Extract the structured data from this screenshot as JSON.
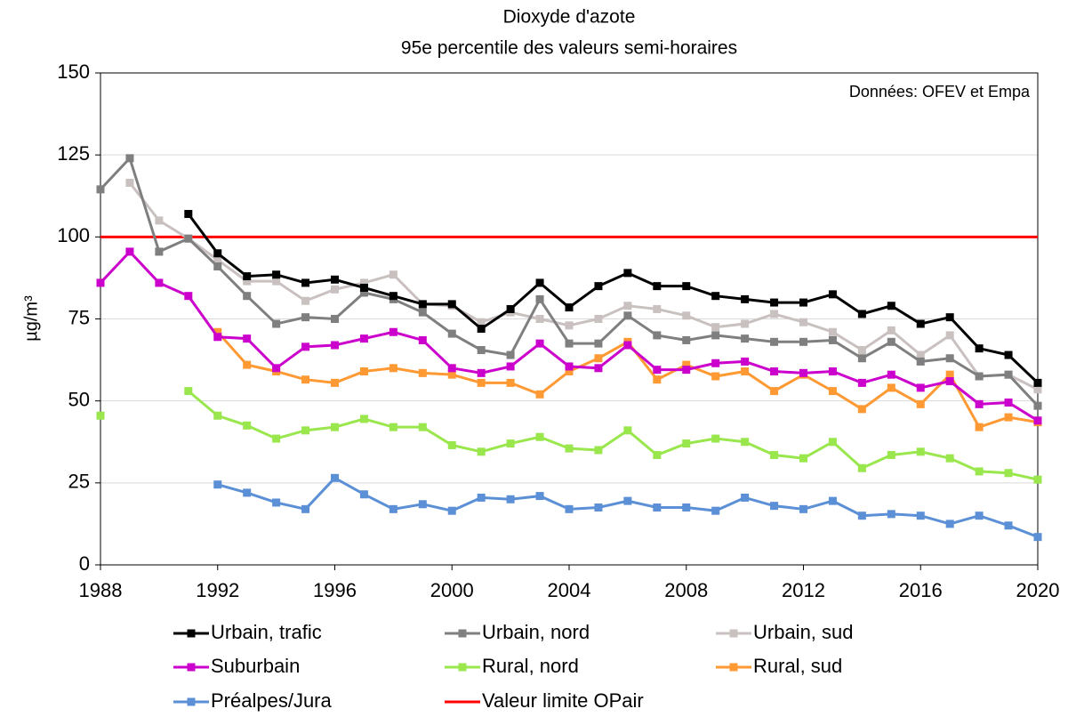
{
  "chart_data": {
    "type": "line",
    "title": "Dioxyde d'azote",
    "subtitle": "95e percentile des valeurs semi-horaires",
    "annotation": "Données: OFEV et Empa",
    "y_label": "µg/m³",
    "x": [
      1988,
      1989,
      1990,
      1991,
      1992,
      1993,
      1994,
      1995,
      1996,
      1997,
      1998,
      1999,
      2000,
      2001,
      2002,
      2003,
      2004,
      2005,
      2006,
      2007,
      2008,
      2009,
      2010,
      2011,
      2012,
      2013,
      2014,
      2015,
      2016,
      2017,
      2018,
      2019,
      2020
    ],
    "xlim": [
      1988,
      2020
    ],
    "xticks": [
      1988,
      1992,
      1996,
      2000,
      2004,
      2008,
      2012,
      2016,
      2020
    ],
    "ylim": [
      0,
      150
    ],
    "yticks": [
      0,
      25,
      50,
      75,
      100,
      125,
      150
    ],
    "grid": true,
    "series": [
      {
        "name": "Urbain, trafic",
        "color": "#000000",
        "markers": true,
        "values": [
          null,
          null,
          null,
          107,
          95,
          88,
          88.5,
          86,
          87,
          84.5,
          82,
          79.5,
          79.5,
          72,
          78,
          86,
          78.5,
          85,
          89,
          85,
          85,
          82,
          81,
          80,
          80,
          82.5,
          76.5,
          79,
          73.5,
          75.5,
          66,
          64,
          55.5
        ]
      },
      {
        "name": "Urbain, nord",
        "color": "#7f7f7f",
        "markers": true,
        "values": [
          114.5,
          124,
          95.5,
          99.5,
          91,
          82,
          73.5,
          75.5,
          75,
          83,
          81,
          77,
          70.5,
          65.5,
          64,
          81,
          67.5,
          67.5,
          76,
          70,
          68.5,
          70,
          69,
          68,
          68,
          68.5,
          63,
          68,
          62,
          63,
          57.5,
          58,
          48.5
        ]
      },
      {
        "name": "Urbain, sud",
        "color": "#c9c0c0",
        "markers": true,
        "values": [
          null,
          116.5,
          105,
          99.5,
          93,
          86.5,
          86.5,
          80.5,
          84,
          86,
          88.5,
          79.5,
          79,
          74,
          77,
          75,
          73,
          75,
          79,
          78,
          76,
          72.5,
          73.5,
          76.5,
          74,
          71,
          65.5,
          71.5,
          64,
          70,
          57.5,
          58,
          53.5
        ]
      },
      {
        "name": "Suburbain",
        "color": "#cc00cc",
        "markers": true,
        "values": [
          86,
          95.5,
          86,
          82,
          69.5,
          69,
          60,
          66.5,
          67,
          69,
          71,
          68.5,
          60,
          58.5,
          60.5,
          67.5,
          60.5,
          60,
          67,
          59.5,
          59.5,
          61.5,
          62,
          59,
          58.5,
          59,
          55.5,
          58,
          54,
          56,
          49,
          49.5,
          44
        ]
      },
      {
        "name": "Rural, nord",
        "color": "#99e64d",
        "markers": true,
        "values": [
          45.5,
          null,
          null,
          53,
          45.5,
          42.5,
          38.5,
          41,
          42,
          44.5,
          42,
          42,
          36.5,
          34.5,
          37,
          39,
          35.5,
          35,
          41,
          33.5,
          37,
          38.5,
          37.5,
          33.5,
          32.5,
          37.5,
          29.5,
          33.5,
          34.5,
          32.5,
          28.5,
          28,
          26
        ]
      },
      {
        "name": "Rural, sud",
        "color": "#ff9933",
        "markers": true,
        "values": [
          null,
          null,
          null,
          null,
          71,
          61,
          59,
          56.5,
          55.5,
          59,
          60,
          58.5,
          58,
          55.5,
          55.5,
          52,
          59,
          63,
          68,
          56.5,
          61,
          57.5,
          59,
          53,
          58,
          53,
          47.5,
          54,
          49,
          58,
          42,
          45,
          43.5
        ]
      },
      {
        "name": "Préalpes/Jura",
        "color": "#5b8fd6",
        "markers": true,
        "values": [
          null,
          null,
          null,
          null,
          24.5,
          22,
          19,
          17,
          26.5,
          21.5,
          17,
          18.5,
          16.5,
          20.5,
          20,
          21,
          17,
          17.5,
          19.5,
          17.5,
          17.5,
          16.5,
          20.5,
          18,
          17,
          19.5,
          15,
          15.5,
          15,
          12.5,
          15,
          12,
          8.5
        ]
      },
      {
        "name": "Valeur limite OPair",
        "color": "#ff0000",
        "markers": false,
        "values": [
          100,
          100,
          100,
          100,
          100,
          100,
          100,
          100,
          100,
          100,
          100,
          100,
          100,
          100,
          100,
          100,
          100,
          100,
          100,
          100,
          100,
          100,
          100,
          100,
          100,
          100,
          100,
          100,
          100,
          100,
          100,
          100,
          100
        ]
      }
    ]
  }
}
